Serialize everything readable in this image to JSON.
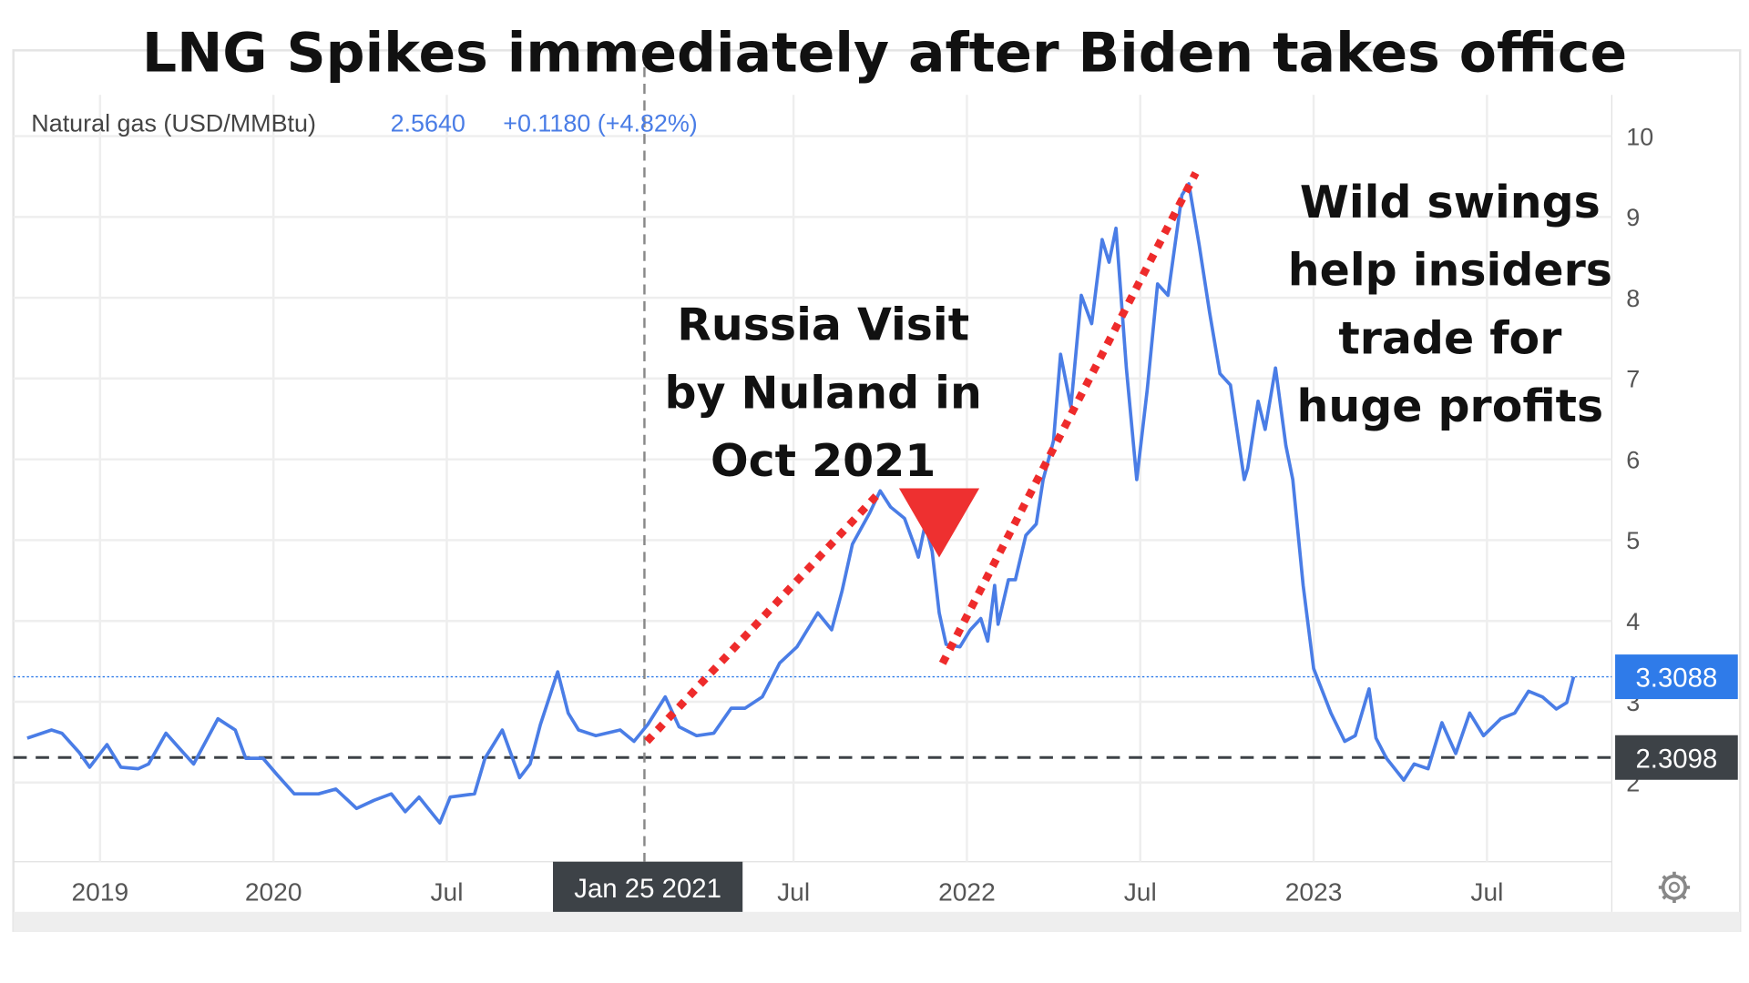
{
  "chart_data": {
    "type": "line",
    "title": "LNG Spikes immediately after Biden takes office",
    "header": {
      "name": "Natural gas (USD/MMBtu)",
      "price": "2.5640",
      "change": "+0.1180 (+4.82%)"
    },
    "series": [
      {
        "name": "Natural gas (USD/MMBtu)",
        "color": "#4a7de6",
        "x": [
          2019.29,
          2019.36,
          2019.39,
          2019.44,
          2019.47,
          2019.52,
          2019.56,
          2019.61,
          2019.64,
          2019.69,
          2019.74,
          2019.77,
          2019.84,
          2019.89,
          2019.92,
          2019.97,
          2020.01,
          2020.06,
          2020.13,
          2020.18,
          2020.24,
          2020.29,
          2020.34,
          2020.38,
          2020.42,
          2020.48,
          2020.51,
          2020.58,
          2020.61,
          2020.66,
          2020.71,
          2020.74,
          2020.77,
          2020.82,
          2020.85,
          2020.88,
          2020.93,
          2021.0,
          2021.04,
          2021.08,
          2021.13,
          2021.17,
          2021.22,
          2021.27,
          2021.32,
          2021.36,
          2021.41,
          2021.46,
          2021.51,
          2021.54,
          2021.57,
          2021.61,
          2021.64,
          2021.67,
          2021.72,
          2021.75,
          2021.78,
          2021.82,
          2021.85,
          2021.86,
          2021.88,
          2021.9,
          2021.92,
          2021.94,
          2021.98,
          2022.01,
          2022.04,
          2022.06,
          2022.08,
          2022.09,
          2022.12,
          2022.14,
          2022.17,
          2022.2,
          2022.22,
          2022.25,
          2022.27,
          2022.3,
          2022.33,
          2022.36,
          2022.39,
          2022.41,
          2022.43,
          2022.46,
          2022.49,
          2022.52,
          2022.55,
          2022.58,
          2022.62,
          2022.64,
          2022.67,
          2022.7,
          2022.73,
          2022.76,
          2022.8,
          2022.81,
          2022.84,
          2022.86,
          2022.89,
          2022.92,
          2022.94,
          2022.97,
          2023.0,
          2023.05,
          2023.09,
          2023.12,
          2023.16,
          2023.18,
          2023.21,
          2023.26,
          2023.29,
          2023.33,
          2023.37,
          2023.41,
          2023.45,
          2023.49,
          2023.54,
          2023.58,
          2023.62,
          2023.66,
          2023.7,
          2023.73,
          2023.75
        ],
        "values": [
          2.55,
          2.65,
          2.61,
          2.37,
          2.19,
          2.47,
          2.19,
          2.17,
          2.23,
          2.61,
          2.37,
          2.23,
          2.79,
          2.65,
          2.3,
          2.3,
          2.1,
          1.86,
          1.86,
          1.92,
          1.68,
          1.78,
          1.86,
          1.64,
          1.82,
          1.5,
          1.82,
          1.86,
          2.3,
          2.65,
          2.06,
          2.23,
          2.72,
          3.37,
          2.86,
          2.65,
          2.58,
          2.65,
          2.51,
          2.72,
          3.06,
          2.69,
          2.58,
          2.61,
          2.92,
          2.92,
          3.06,
          3.48,
          3.68,
          3.89,
          4.1,
          3.89,
          4.37,
          4.95,
          5.34,
          5.61,
          5.41,
          5.27,
          4.92,
          4.79,
          5.2,
          4.86,
          4.1,
          3.71,
          3.68,
          3.89,
          4.03,
          3.75,
          4.44,
          3.96,
          4.51,
          4.51,
          5.06,
          5.2,
          5.75,
          6.23,
          7.3,
          6.65,
          8.03,
          7.68,
          8.72,
          8.44,
          8.86,
          7.13,
          5.75,
          6.86,
          8.17,
          8.03,
          9.27,
          9.41,
          8.65,
          7.82,
          7.06,
          6.92,
          5.75,
          5.89,
          6.72,
          6.37,
          7.13,
          6.17,
          5.75,
          4.44,
          3.41,
          2.86,
          2.51,
          2.58,
          3.16,
          2.55,
          2.3,
          2.03,
          2.23,
          2.17,
          2.74,
          2.36,
          2.86,
          2.58,
          2.79,
          2.86,
          3.13,
          3.06,
          2.91,
          2.99,
          3.31
        ]
      }
    ],
    "xlim": [
      2019.25,
      2023.86
    ],
    "ylim": [
      1.02,
      10.51
    ],
    "xticks": [
      {
        "value": 2019.5,
        "label": "2019"
      },
      2020,
      {
        "value": 2020.5,
        "label": "Jul"
      },
      {
        "value": 2021.5,
        "label": "Jul"
      },
      2022,
      {
        "value": 2022.5,
        "label": "Jul"
      },
      2023,
      {
        "value": 2023.5,
        "label": "Jul"
      }
    ],
    "yticks": [
      2,
      3,
      4,
      5,
      6,
      7,
      8,
      9,
      10
    ],
    "grid": true,
    "crosshair": {
      "x": 2021.07,
      "label": "Jan 25 2021"
    },
    "price_lines": [
      {
        "value": 3.3088,
        "color": "#2f7be9",
        "style": "dotted"
      },
      {
        "value": 2.3098,
        "color": "#3d4247",
        "style": "dashed"
      }
    ],
    "annotations": [
      {
        "lines": [
          "Russia Visit",
          "by Nuland in",
          "Oct 2021"
        ]
      },
      {
        "lines": [
          "Wild swings",
          "help insiders",
          "trade for",
          "huge profits"
        ]
      }
    ]
  }
}
